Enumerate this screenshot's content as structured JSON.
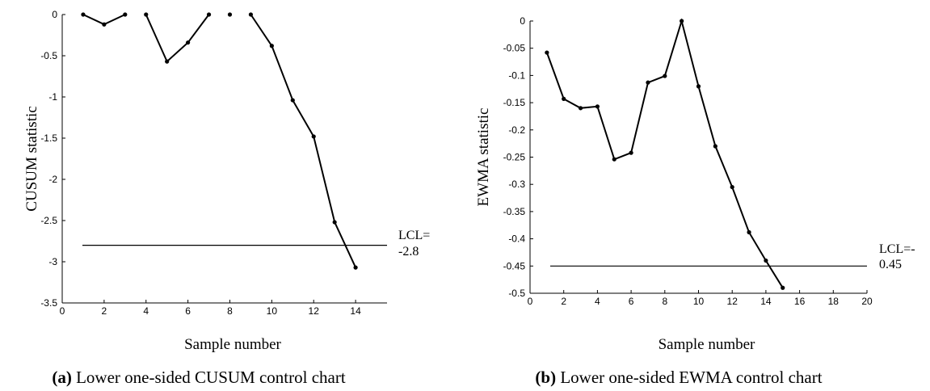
{
  "chart_data": [
    {
      "type": "line",
      "caption_id": "(a)",
      "caption_text": "Lower one-sided CUSUM control chart",
      "xlabel": "Sample number",
      "ylabel": "CUSUM statistic",
      "xlim": [
        0,
        15.5
      ],
      "ylim": [
        -3.5,
        0
      ],
      "xticks": [
        0,
        2,
        4,
        6,
        8,
        10,
        12,
        14
      ],
      "yticks": [
        0,
        -0.5,
        -1,
        -1.5,
        -2,
        -2.5,
        -3,
        -3.5
      ],
      "ytick_labels": [
        "0",
        "-0.5",
        "-1",
        "-1.5",
        "-2",
        "-2.5",
        "-3",
        "-3.5"
      ],
      "series": [
        {
          "segments": [
            [
              [
                1,
                0
              ],
              [
                2,
                -0.12
              ],
              [
                3,
                0
              ]
            ],
            [
              [
                4,
                0
              ],
              [
                5,
                -0.57
              ],
              [
                6,
                -0.34
              ],
              [
                7,
                0
              ]
            ],
            [
              [
                8,
                0
              ]
            ],
            [
              [
                9,
                0
              ],
              [
                10,
                -0.38
              ],
              [
                11,
                -1.04
              ],
              [
                12,
                -1.48
              ],
              [
                13,
                -2.52
              ],
              [
                14,
                -3.07
              ]
            ]
          ]
        }
      ],
      "lcl_value": -2.8,
      "lcl_label_line1": "LCL=",
      "lcl_label_line2": "-2.8"
    },
    {
      "type": "line",
      "caption_id": "(b)",
      "caption_text": "Lower one-sided EWMA control chart",
      "xlabel": "Sample number",
      "ylabel": "EWMA statistic",
      "xlim": [
        0,
        20
      ],
      "ylim": [
        -0.5,
        0
      ],
      "xticks": [
        0,
        2,
        4,
        6,
        8,
        10,
        12,
        14,
        16,
        18,
        20
      ],
      "yticks": [
        0,
        -0.05,
        -0.1,
        -0.15,
        -0.2,
        -0.25,
        -0.3,
        -0.35,
        -0.4,
        -0.45,
        -0.5
      ],
      "ytick_labels": [
        "0",
        "-0.05",
        "-0.1",
        "-0.15",
        "-0.2",
        "-0.25",
        "-0.3",
        "-0.35",
        "-0.4",
        "-0.45",
        "-0.5"
      ],
      "series": [
        {
          "segments": [
            [
              [
                1,
                -0.058
              ],
              [
                2,
                -0.143
              ],
              [
                3,
                -0.16
              ],
              [
                4,
                -0.157
              ],
              [
                5,
                -0.254
              ],
              [
                6,
                -0.242
              ],
              [
                7,
                -0.113
              ],
              [
                8,
                -0.101
              ],
              [
                9,
                0
              ],
              [
                10,
                -0.12
              ],
              [
                11,
                -0.23
              ],
              [
                12,
                -0.305
              ],
              [
                13,
                -0.388
              ],
              [
                14,
                -0.44
              ],
              [
                15,
                -0.49
              ]
            ]
          ]
        }
      ],
      "lcl_value": -0.45,
      "lcl_label_line1": "LCL=-",
      "lcl_label_line2": "0.45"
    }
  ]
}
